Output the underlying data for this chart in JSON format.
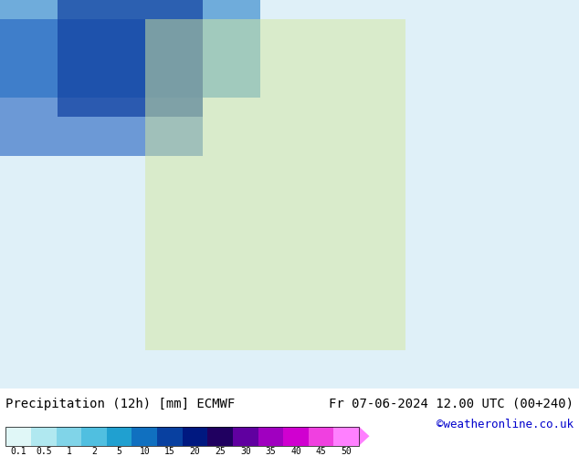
{
  "title_left": "Precipitation (12h) [mm] ECMWF",
  "title_right": "Fr 07-06-2024 12.00 UTC (00+240)",
  "credit": "©weatheronline.co.uk",
  "colorbar_values": [
    0.1,
    0.5,
    1,
    2,
    5,
    10,
    15,
    20,
    25,
    30,
    35,
    40,
    45,
    50
  ],
  "colorbar_colors": [
    "#e0f7f7",
    "#b0e8f0",
    "#80d4e8",
    "#50bfe0",
    "#20a0d0",
    "#1070c0",
    "#0840a0",
    "#001880",
    "#200060",
    "#6000a0",
    "#a000c0",
    "#d000d0",
    "#f040e0",
    "#ff80ff"
  ],
  "bg_color": "#ffffff",
  "map_bg": "#f0f8ff",
  "text_color": "#000000",
  "credit_color": "#0000cc",
  "bottom_bar_height": 0.13,
  "title_fontsize": 10,
  "credit_fontsize": 9,
  "tick_fontsize": 8
}
